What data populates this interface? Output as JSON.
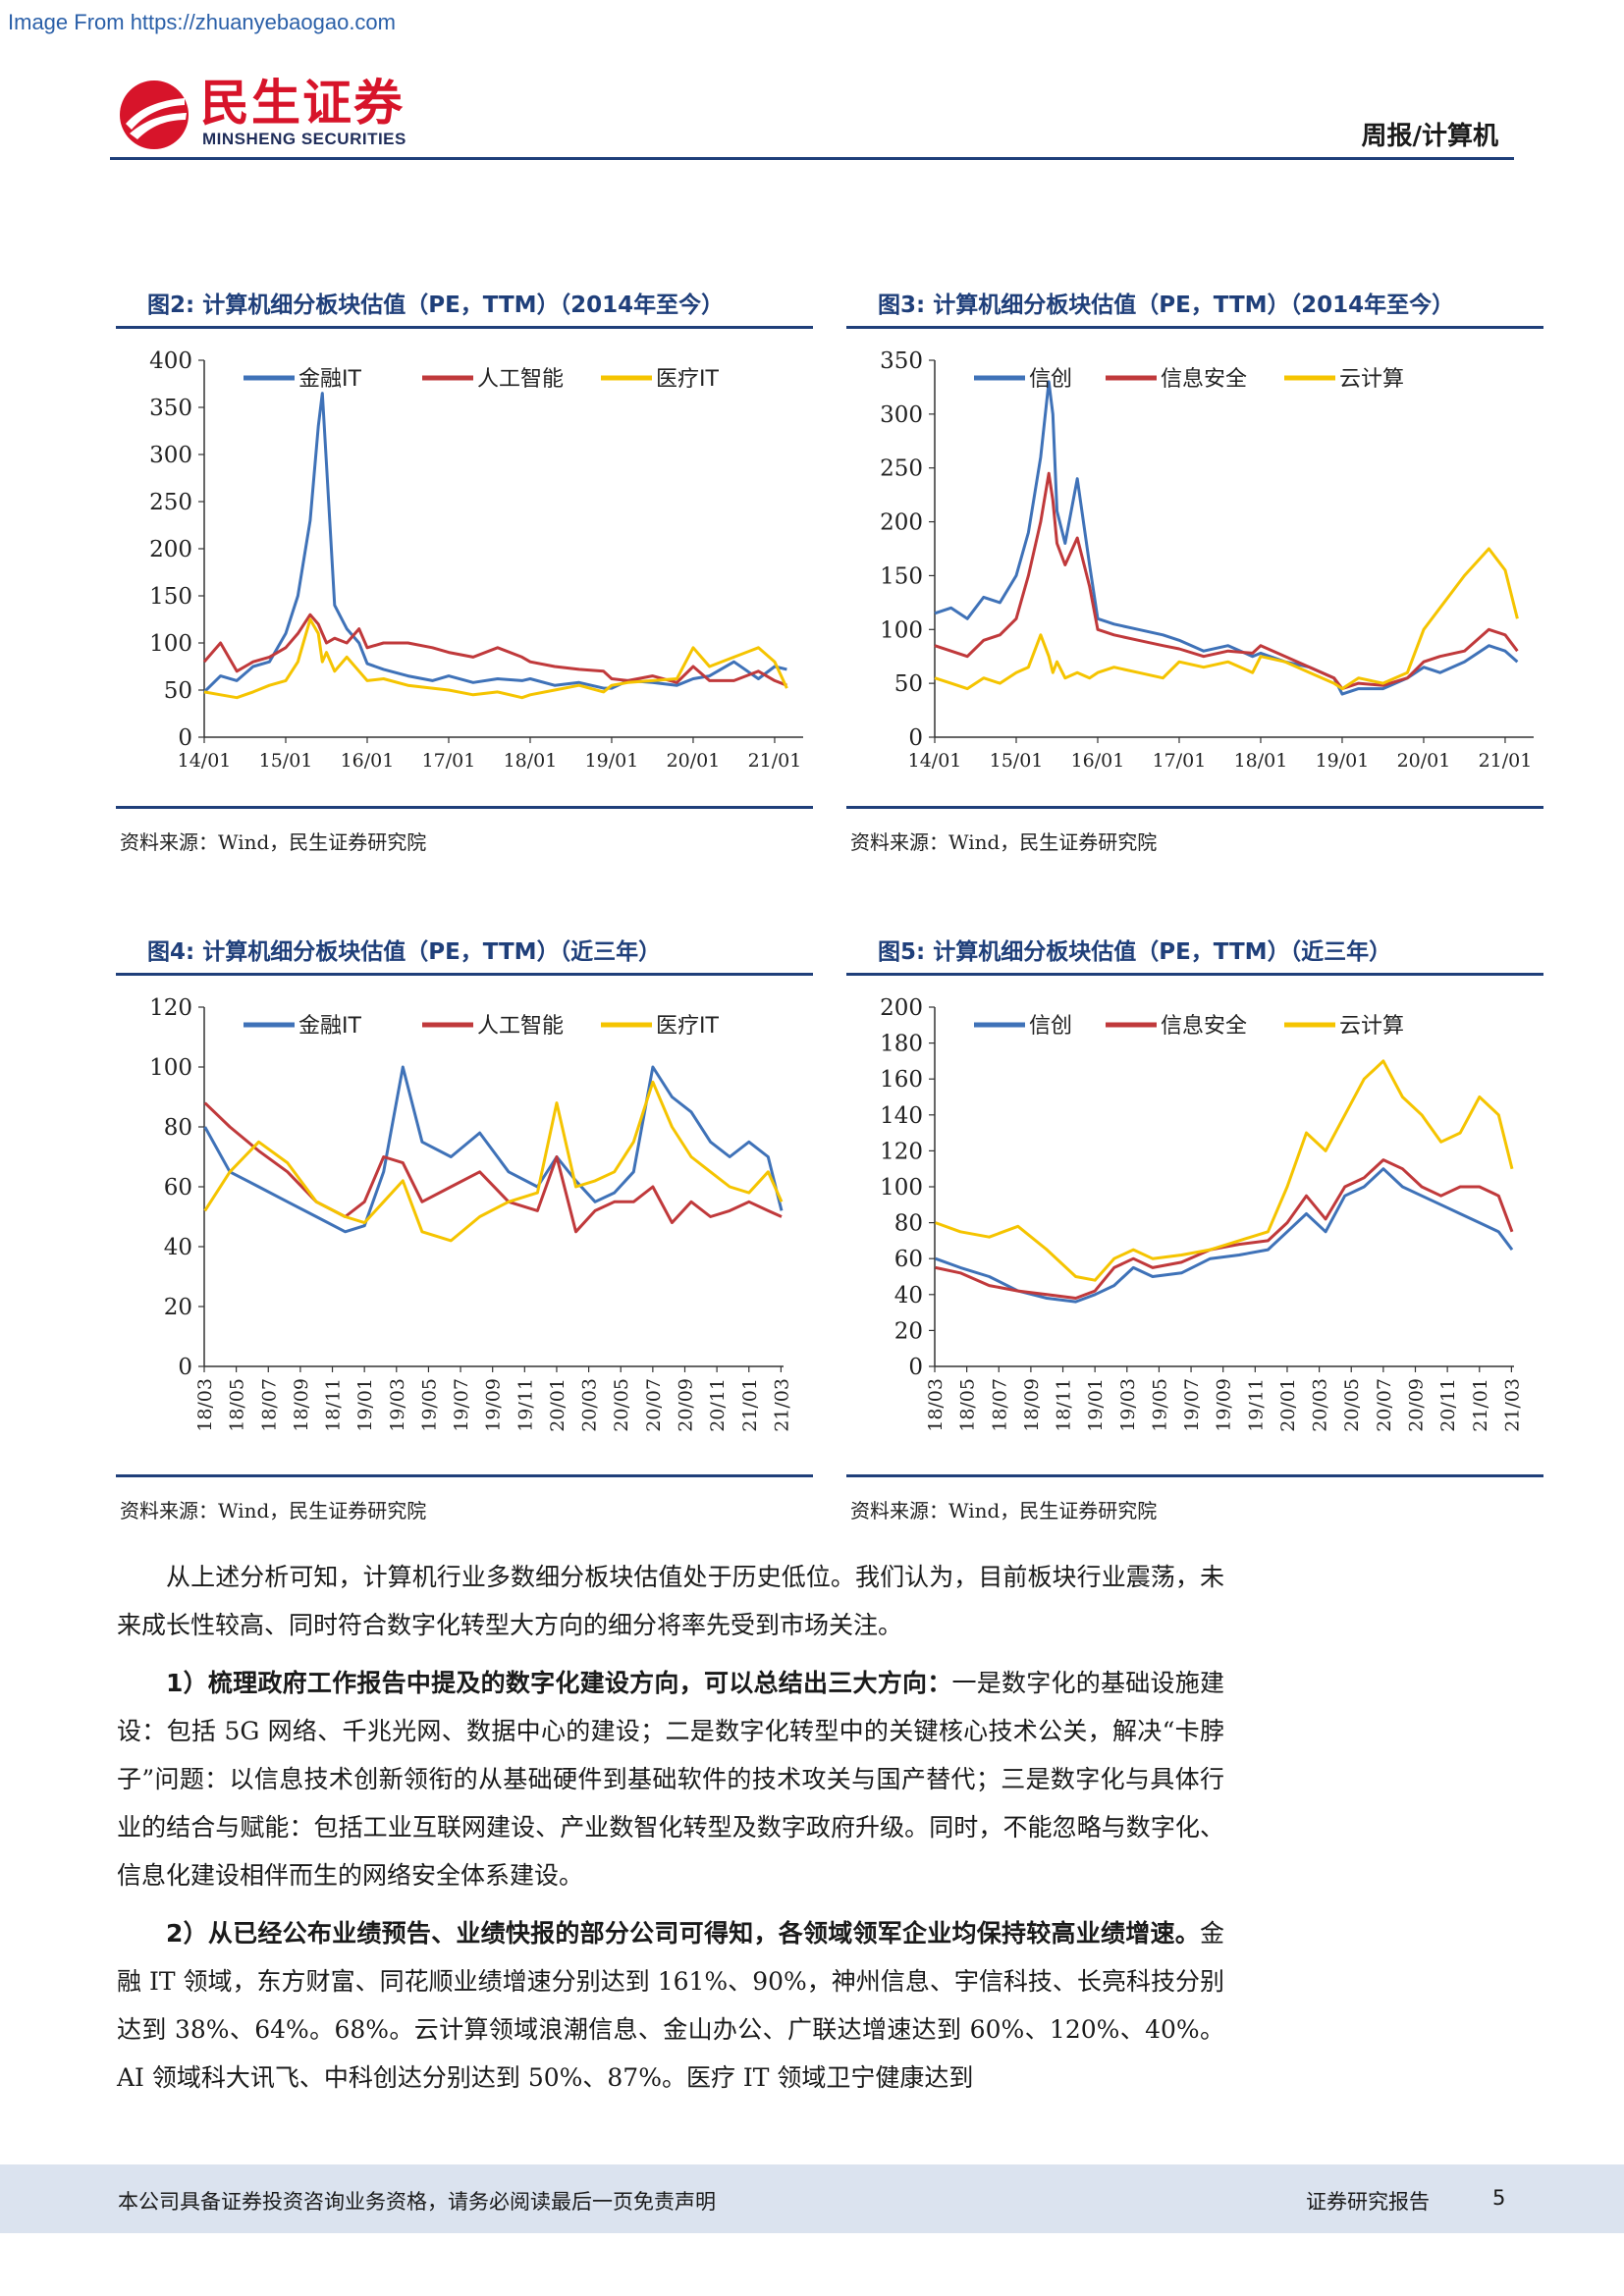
{
  "watermark": "Image From https://zhuanyebaogao.com",
  "header": {
    "logo_cn": "民生证券",
    "logo_en": "MINSHENG SECURITIES",
    "section": "周报/计算机"
  },
  "colors": {
    "brand_red": "#d7142a",
    "rule_blue": "#1f3f7a",
    "series_blue": "#3f72b8",
    "series_red": "#c0393b",
    "series_yellow": "#f5c400"
  },
  "figures": [
    {
      "title": "图2: 计算机细分板块估值（PE，TTM）（2014年至今）",
      "source": "资料来源：Wind，民生证券研究院"
    },
    {
      "title": "图3: 计算机细分板块估值（PE，TTM）（2014年至今）",
      "source": "资料来源：Wind，民生证券研究院"
    },
    {
      "title": "图4: 计算机细分板块估值（PE，TTM）（近三年）",
      "source": "资料来源：Wind，民生证券研究院"
    },
    {
      "title": "图5: 计算机细分板块估值（PE，TTM）（近三年）",
      "source": "资料来源：Wind，民生证券研究院"
    }
  ],
  "chart_data": [
    {
      "type": "line",
      "title": "图2: 计算机细分板块估值（PE，TTM）（2014年至今）",
      "ylim": [
        0,
        400
      ],
      "yticks": [
        "0",
        "50",
        "100",
        "150",
        "200",
        "250",
        "300",
        "350",
        "400"
      ],
      "xticks": [
        "14/01",
        "15/01",
        "16/01",
        "17/01",
        "18/01",
        "19/01",
        "20/01",
        "21/01"
      ],
      "grid": false,
      "legend": "top",
      "x": [
        2014.0,
        2014.2,
        2014.4,
        2014.6,
        2014.8,
        2015.0,
        2015.15,
        2015.3,
        2015.4,
        2015.45,
        2015.5,
        2015.6,
        2015.75,
        2015.9,
        2016.0,
        2016.2,
        2016.5,
        2016.8,
        2017.0,
        2017.3,
        2017.6,
        2017.9,
        2018.0,
        2018.3,
        2018.6,
        2018.9,
        2019.0,
        2019.2,
        2019.5,
        2019.8,
        2020.0,
        2020.2,
        2020.5,
        2020.8,
        2021.0,
        2021.15
      ],
      "series": [
        {
          "name": "金融IT",
          "color": "#3f72b8",
          "values": [
            48,
            65,
            60,
            75,
            80,
            110,
            150,
            230,
            330,
            365,
            290,
            140,
            115,
            100,
            78,
            72,
            65,
            60,
            65,
            58,
            62,
            60,
            62,
            55,
            58,
            52,
            52,
            60,
            58,
            55,
            62,
            65,
            80,
            62,
            75,
            72
          ]
        },
        {
          "name": "人工智能",
          "color": "#c0393b",
          "values": [
            80,
            100,
            70,
            80,
            85,
            95,
            110,
            130,
            120,
            110,
            100,
            105,
            100,
            115,
            95,
            100,
            100,
            95,
            90,
            85,
            95,
            85,
            80,
            75,
            72,
            70,
            62,
            60,
            65,
            58,
            75,
            60,
            60,
            70,
            60,
            55
          ]
        },
        {
          "name": "医疗IT",
          "color": "#f5c400",
          "values": [
            48,
            45,
            42,
            48,
            55,
            60,
            80,
            125,
            110,
            80,
            90,
            70,
            85,
            70,
            60,
            62,
            55,
            52,
            50,
            45,
            48,
            42,
            45,
            50,
            55,
            48,
            55,
            58,
            60,
            62,
            95,
            75,
            85,
            95,
            80,
            52
          ]
        }
      ]
    },
    {
      "type": "line",
      "title": "图3: 计算机细分板块估值（PE，TTM）（2014年至今）",
      "ylim": [
        0,
        350
      ],
      "yticks": [
        "0",
        "50",
        "100",
        "150",
        "200",
        "250",
        "300",
        "350"
      ],
      "xticks": [
        "14/01",
        "15/01",
        "16/01",
        "17/01",
        "18/01",
        "19/01",
        "20/01",
        "21/01"
      ],
      "grid": false,
      "legend": "top",
      "x": [
        2014.0,
        2014.2,
        2014.4,
        2014.6,
        2014.8,
        2015.0,
        2015.15,
        2015.3,
        2015.4,
        2015.45,
        2015.5,
        2015.6,
        2015.75,
        2015.9,
        2016.0,
        2016.2,
        2016.5,
        2016.8,
        2017.0,
        2017.3,
        2017.6,
        2017.9,
        2018.0,
        2018.3,
        2018.6,
        2018.9,
        2019.0,
        2019.2,
        2019.5,
        2019.8,
        2020.0,
        2020.2,
        2020.5,
        2020.8,
        2021.0,
        2021.15
      ],
      "series": [
        {
          "name": "信创",
          "color": "#3f72b8",
          "values": [
            115,
            120,
            110,
            130,
            125,
            150,
            190,
            260,
            330,
            300,
            210,
            180,
            240,
            160,
            110,
            105,
            100,
            95,
            90,
            80,
            85,
            75,
            78,
            70,
            65,
            55,
            40,
            45,
            45,
            55,
            65,
            60,
            70,
            85,
            80,
            70
          ]
        },
        {
          "name": "信息安全",
          "color": "#c0393b",
          "values": [
            85,
            80,
            75,
            90,
            95,
            110,
            150,
            200,
            245,
            220,
            180,
            160,
            185,
            140,
            100,
            95,
            90,
            85,
            82,
            75,
            80,
            78,
            85,
            75,
            65,
            55,
            45,
            50,
            48,
            55,
            70,
            75,
            80,
            100,
            95,
            80
          ]
        },
        {
          "name": "云计算",
          "color": "#f5c400",
          "values": [
            55,
            50,
            45,
            55,
            50,
            60,
            65,
            95,
            75,
            60,
            70,
            55,
            60,
            55,
            60,
            65,
            60,
            55,
            70,
            65,
            70,
            60,
            75,
            70,
            60,
            50,
            45,
            55,
            50,
            60,
            100,
            120,
            150,
            175,
            155,
            110
          ]
        }
      ]
    },
    {
      "type": "line",
      "title": "图4: 计算机细分板块估值（PE，TTM）（近三年）",
      "ylim": [
        0,
        120
      ],
      "yticks": [
        "0",
        "20",
        "40",
        "60",
        "80",
        "100",
        "120"
      ],
      "xticks": [
        "18/03",
        "18/05",
        "18/07",
        "18/09",
        "18/11",
        "19/01",
        "19/03",
        "19/05",
        "19/07",
        "19/09",
        "19/11",
        "20/01",
        "20/03",
        "20/05",
        "20/07",
        "20/09",
        "20/11",
        "21/01",
        "21/03"
      ],
      "grid": false,
      "legend": "top",
      "x": [
        2018.17,
        2018.3,
        2018.45,
        2018.6,
        2018.75,
        2018.9,
        2019.0,
        2019.1,
        2019.2,
        2019.3,
        2019.45,
        2019.6,
        2019.75,
        2019.9,
        2020.0,
        2020.1,
        2020.2,
        2020.3,
        2020.4,
        2020.5,
        2020.6,
        2020.7,
        2020.8,
        2020.9,
        2021.0,
        2021.1,
        2021.17
      ],
      "series": [
        {
          "name": "金融IT",
          "color": "#3f72b8",
          "values": [
            80,
            65,
            60,
            55,
            50,
            45,
            47,
            65,
            100,
            75,
            70,
            78,
            65,
            60,
            70,
            62,
            55,
            58,
            65,
            100,
            90,
            85,
            75,
            70,
            75,
            70,
            52
          ]
        },
        {
          "name": "人工智能",
          "color": "#c0393b",
          "values": [
            88,
            80,
            72,
            65,
            55,
            50,
            55,
            70,
            68,
            55,
            60,
            65,
            55,
            52,
            70,
            45,
            52,
            55,
            55,
            60,
            48,
            55,
            50,
            52,
            55,
            52,
            50
          ]
        },
        {
          "name": "医疗IT",
          "color": "#f5c400",
          "values": [
            52,
            65,
            75,
            68,
            55,
            50,
            48,
            55,
            62,
            45,
            42,
            50,
            55,
            58,
            88,
            60,
            62,
            65,
            75,
            95,
            80,
            70,
            65,
            60,
            58,
            65,
            55
          ]
        }
      ]
    },
    {
      "type": "line",
      "title": "图5: 计算机细分板块估值（PE，TTM）（近三年）",
      "ylim": [
        0,
        200
      ],
      "yticks": [
        "0",
        "20",
        "40",
        "60",
        "80",
        "100",
        "120",
        "140",
        "160",
        "180",
        "200"
      ],
      "xticks": [
        "18/03",
        "18/05",
        "18/07",
        "18/09",
        "18/11",
        "19/01",
        "19/03",
        "19/05",
        "19/07",
        "19/09",
        "19/11",
        "20/01",
        "20/03",
        "20/05",
        "20/07",
        "20/09",
        "20/11",
        "21/01",
        "21/03"
      ],
      "grid": false,
      "legend": "top",
      "x": [
        2018.17,
        2018.3,
        2018.45,
        2018.6,
        2018.75,
        2018.9,
        2019.0,
        2019.1,
        2019.2,
        2019.3,
        2019.45,
        2019.6,
        2019.75,
        2019.9,
        2020.0,
        2020.1,
        2020.2,
        2020.3,
        2020.4,
        2020.5,
        2020.6,
        2020.7,
        2020.8,
        2020.9,
        2021.0,
        2021.1,
        2021.17
      ],
      "series": [
        {
          "name": "信创",
          "color": "#3f72b8",
          "values": [
            60,
            55,
            50,
            42,
            38,
            36,
            40,
            45,
            55,
            50,
            52,
            60,
            62,
            65,
            75,
            85,
            75,
            95,
            100,
            110,
            100,
            95,
            90,
            85,
            80,
            75,
            65
          ]
        },
        {
          "name": "信息安全",
          "color": "#c0393b",
          "values": [
            55,
            52,
            45,
            42,
            40,
            38,
            42,
            55,
            60,
            55,
            58,
            65,
            68,
            70,
            80,
            95,
            82,
            100,
            105,
            115,
            110,
            100,
            95,
            100,
            100,
            95,
            75
          ]
        },
        {
          "name": "云计算",
          "color": "#f5c400",
          "values": [
            80,
            75,
            72,
            78,
            65,
            50,
            48,
            60,
            65,
            60,
            62,
            65,
            70,
            75,
            100,
            130,
            120,
            140,
            160,
            170,
            150,
            140,
            125,
            130,
            150,
            140,
            110
          ]
        }
      ]
    }
  ],
  "paragraphs": [
    {
      "bold": "",
      "text": "从上述分析可知，计算机行业多数细分板块估值处于历史低位。我们认为，目前板块行业震荡，未来成长性较高、同时符合数字化转型大方向的细分将率先受到市场关注。"
    },
    {
      "bold": "1）梳理政府工作报告中提及的数字化建设方向，可以总结出三大方向：",
      "text": "一是数字化的基础设施建设：包括 5G 网络、千兆光网、数据中心的建设；二是数字化转型中的关键核心技术公关，解决“卡脖子”问题：以信息技术创新领衔的从基础硬件到基础软件的技术攻关与国产替代；三是数字化与具体行业的结合与赋能：包括工业互联网建设、产业数智化转型及数字政府升级。同时，不能忽略与数字化、信息化建设相伴而生的网络安全体系建设。"
    },
    {
      "bold": "2）从已经公布业绩预告、业绩快报的部分公司可得知，各领域领军企业均保持较高业绩增速。",
      "text": "金融 IT 领域，东方财富、同花顺业绩增速分别达到 161%、90%，神州信息、宇信科技、长亮科技分别达到 38%、64%。68%。云计算领域浪潮信息、金山办公、广联达增速达到 60%、120%、40%。AI 领域科大讯飞、中科创达分别达到 50%、87%。医疗 IT 领域卫宁健康达到"
    }
  ],
  "footer": {
    "disclaimer": "本公司具备证券投资咨询业务资格，请务必阅读最后一页免责声明",
    "report_type": "证券研究报告",
    "page": "5"
  }
}
